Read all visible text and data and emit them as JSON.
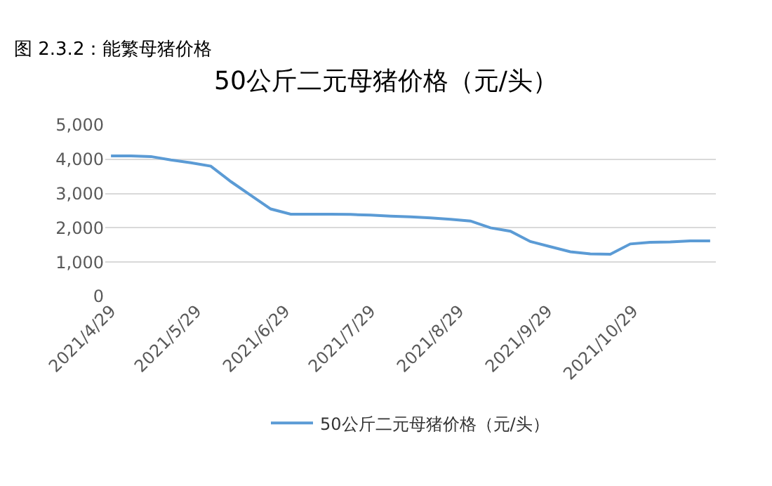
{
  "chart_data": {
    "type": "line",
    "title": "50公斤二元母猪价格（元/头）",
    "annotations": [
      "图 2.3.2：能繁母猪价格"
    ],
    "x": [
      "2021-04-29",
      "2021-05-06",
      "2021-05-13",
      "2021-05-20",
      "2021-05-27",
      "2021-06-03",
      "2021-06-10",
      "2021-06-17",
      "2021-06-24",
      "2021-07-01",
      "2021-07-08",
      "2021-07-15",
      "2021-07-22",
      "2021-07-29",
      "2021-08-05",
      "2021-08-12",
      "2021-08-19",
      "2021-08-26",
      "2021-09-02",
      "2021-09-09",
      "2021-09-16",
      "2021-09-23",
      "2021-09-30",
      "2021-10-07",
      "2021-10-14",
      "2021-10-21",
      "2021-10-28",
      "2021-11-04",
      "2021-11-11",
      "2021-11-18",
      "2021-11-25"
    ],
    "series": [
      {
        "name": "50公斤二元母猪价格（元/头）",
        "color": "#5b9bd5",
        "values": [
          4100,
          4100,
          4080,
          3980,
          3900,
          3800,
          3350,
          2950,
          2550,
          2400,
          2400,
          2400,
          2390,
          2370,
          2340,
          2320,
          2290,
          2250,
          2200,
          2000,
          1900,
          1600,
          1450,
          1300,
          1240,
          1230,
          1530,
          1580,
          1590,
          1620,
          1620
        ]
      }
    ],
    "xlim": [
      "2021-04-27",
      "2021-11-27"
    ],
    "xticks": [
      {
        "value": "2021-04-29",
        "label": "2021/4/29"
      },
      {
        "value": "2021-05-29",
        "label": "2021/5/29"
      },
      {
        "value": "2021-06-29",
        "label": "2021/6/29"
      },
      {
        "value": "2021-07-29",
        "label": "2021/7/29"
      },
      {
        "value": "2021-08-29",
        "label": "2021/8/29"
      },
      {
        "value": "2021-09-29",
        "label": "2021/9/29"
      },
      {
        "value": "2021-10-29",
        "label": "2021/10/29"
      }
    ],
    "ylim": [
      0,
      5000
    ],
    "yticks": [
      {
        "value": 0,
        "label": "0"
      },
      {
        "value": 1000,
        "label": "1,000"
      },
      {
        "value": 2000,
        "label": "2,000"
      },
      {
        "value": 3000,
        "label": "3,000"
      },
      {
        "value": 4000,
        "label": "4,000"
      },
      {
        "value": 5000,
        "label": "5,000"
      }
    ],
    "grid": "y",
    "legend": "bottom",
    "marker": "none",
    "line_style": "solid"
  }
}
